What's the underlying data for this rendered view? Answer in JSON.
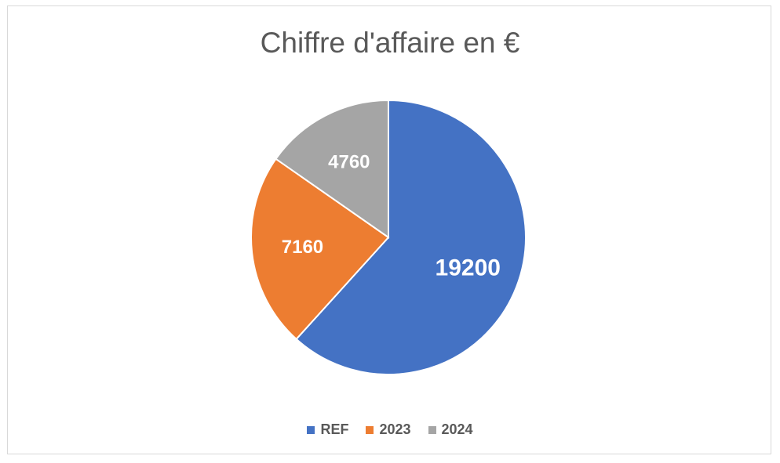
{
  "chart_data": {
    "type": "pie",
    "title": "Chiffre d'affaire en €",
    "categories": [
      "REF",
      "2023",
      "2024"
    ],
    "values": [
      19200,
      7160,
      4760
    ],
    "colors": [
      "#4472c4",
      "#ed7d31",
      "#a5a5a5"
    ],
    "data_labels": [
      "19200",
      "7160",
      "4760"
    ],
    "legend_position": "bottom"
  }
}
